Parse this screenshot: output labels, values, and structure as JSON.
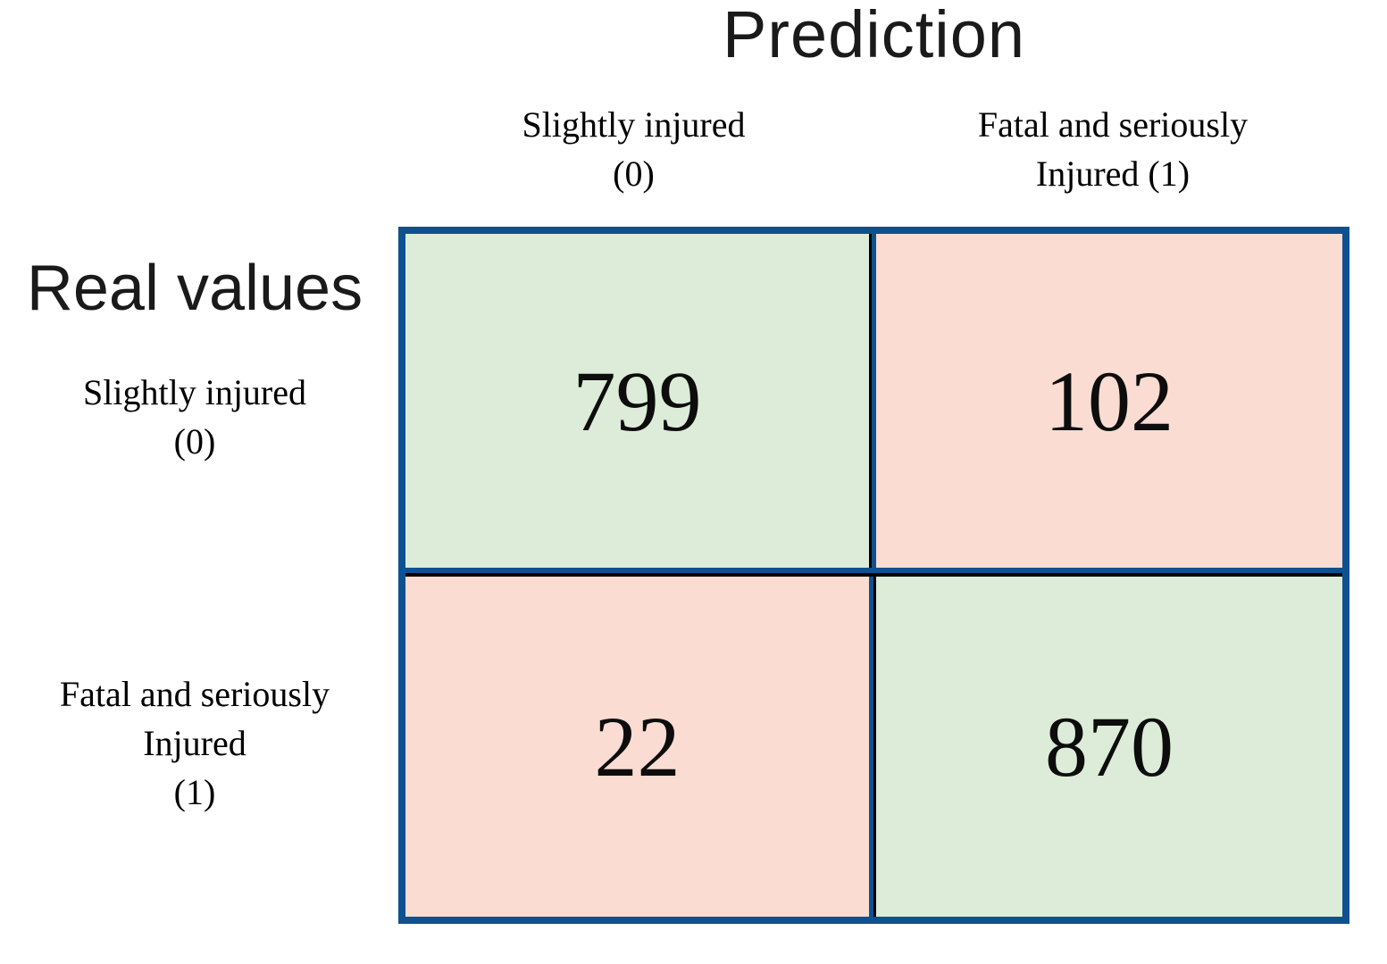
{
  "title": "Prediction",
  "y_axis_title": "Real values",
  "columns": [
    {
      "lines": [
        "Slightly injured",
        "(0)"
      ]
    },
    {
      "lines": [
        "Fatal and seriously",
        "Injured (1)"
      ]
    }
  ],
  "rows": [
    {
      "lines": [
        "Slightly injured",
        "(0)"
      ]
    },
    {
      "lines": [
        "Fatal and seriously",
        "Injured",
        "(1)"
      ]
    }
  ],
  "cells": [
    {
      "row": 0,
      "col": 0,
      "value": "799",
      "tone": "correct"
    },
    {
      "row": 0,
      "col": 1,
      "value": "102",
      "tone": "incorrect"
    },
    {
      "row": 1,
      "col": 0,
      "value": "22",
      "tone": "incorrect"
    },
    {
      "row": 1,
      "col": 1,
      "value": "870",
      "tone": "correct"
    }
  ],
  "colors": {
    "correct_cell_green": "#dcecd8",
    "incorrect_cell_pink": "#fbdcd2",
    "matrix_border_blue": "#0e5191",
    "inner_line_black": "#000000",
    "text_black": "#000000"
  },
  "chart_data": {
    "type": "heatmap",
    "title": "Prediction",
    "x_axis_label": "Prediction",
    "y_axis_label": "Real values",
    "x_categories": [
      "Slightly injured (0)",
      "Fatal and seriously Injured (1)"
    ],
    "y_categories": [
      "Slightly injured (0)",
      "Fatal and seriously Injured (1)"
    ],
    "values": [
      [
        799,
        102
      ],
      [
        22,
        870
      ]
    ],
    "cell_tones": [
      [
        "correct",
        "incorrect"
      ],
      [
        "incorrect",
        "correct"
      ]
    ],
    "legend_position": "none",
    "grid": "2x2 confusion matrix, diagonal cells green (correct), off-diagonal cells pink (incorrect)"
  }
}
